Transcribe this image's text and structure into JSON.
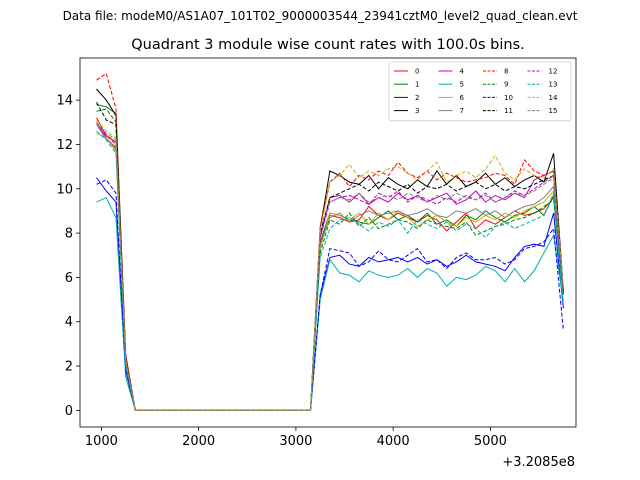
{
  "suptitle": "Data file: modeM0/AS1A07_101T02_9000003544_23941cztM0_level2_quad_clean.evt",
  "chart_data": {
    "type": "line",
    "title": "Quadrant 3 module wise count rates with 100.0s bins.",
    "xlabel": "",
    "ylabel": "",
    "x_offset_label": "+3.2085e8",
    "xlim": [
      780,
      5880
    ],
    "ylim": [
      -0.75,
      15.9
    ],
    "xticks": [
      1000,
      2000,
      3000,
      4000,
      5000
    ],
    "yticks": [
      0,
      2,
      4,
      6,
      8,
      10,
      12,
      14
    ],
    "grid": false,
    "legend_position": "top-right",
    "legend_columns": 4,
    "x": [
      950,
      1050,
      1150,
      1250,
      1350,
      1450,
      1550,
      1650,
      1750,
      1850,
      1950,
      2050,
      2150,
      2250,
      2350,
      2450,
      2550,
      2650,
      2750,
      2850,
      2950,
      3050,
      3150,
      3250,
      3350,
      3450,
      3550,
      3650,
      3750,
      3850,
      3950,
      4050,
      4150,
      4250,
      4350,
      4450,
      4550,
      4650,
      4750,
      4850,
      4950,
      5050,
      5150,
      5250,
      5350,
      5450,
      5550,
      5650,
      5750
    ],
    "series": [
      {
        "name": "0",
        "color": "#ff0000",
        "dash": "solid",
        "values": [
          13.2,
          12.4,
          12.1,
          2.3,
          0,
          0,
          0,
          0,
          0,
          0,
          0,
          0,
          0,
          0,
          0,
          0,
          0,
          0,
          0,
          0,
          0,
          0,
          0,
          7.5,
          8.8,
          8.7,
          8.5,
          8.6,
          9.2,
          8.8,
          8.6,
          8.9,
          8.7,
          8.5,
          8.8,
          8.6,
          8.1,
          8.5,
          8.9,
          8.2,
          8.6,
          8.4,
          8.7,
          9.0,
          8.8,
          8.9,
          9.1,
          9.6,
          5.5
        ]
      },
      {
        "name": "1",
        "color": "#008000",
        "dash": "solid",
        "values": [
          13.8,
          13.7,
          13.4,
          2.1,
          0,
          0,
          0,
          0,
          0,
          0,
          0,
          0,
          0,
          0,
          0,
          0,
          0,
          0,
          0,
          0,
          0,
          0,
          0,
          7.6,
          8.9,
          8.8,
          8.6,
          8.5,
          8.4,
          8.7,
          9.0,
          8.6,
          8.8,
          8.5,
          8.9,
          8.4,
          8.6,
          8.3,
          8.8,
          8.6,
          9.0,
          8.7,
          8.5,
          8.8,
          8.9,
          9.2,
          8.8,
          9.7,
          5.4
        ]
      },
      {
        "name": "2",
        "color": "#0000ff",
        "dash": "solid",
        "values": [
          10.5,
          9.9,
          9.4,
          1.8,
          0,
          0,
          0,
          0,
          0,
          0,
          0,
          0,
          0,
          0,
          0,
          0,
          0,
          0,
          0,
          0,
          0,
          0,
          0,
          5.2,
          6.9,
          7.0,
          6.6,
          6.5,
          6.9,
          6.7,
          6.8,
          6.9,
          6.7,
          6.9,
          6.6,
          6.8,
          6.5,
          6.7,
          7.0,
          6.7,
          6.6,
          6.5,
          6.3,
          6.9,
          7.4,
          7.5,
          7.4,
          8.9,
          4.6
        ]
      },
      {
        "name": "3",
        "color": "#000000",
        "dash": "solid",
        "values": [
          14.5,
          14.0,
          13.3,
          2.5,
          0,
          0,
          0,
          0,
          0,
          0,
          0,
          0,
          0,
          0,
          0,
          0,
          0,
          0,
          0,
          0,
          0,
          0,
          0,
          8.2,
          10.8,
          10.6,
          10.3,
          10.2,
          10.6,
          10.0,
          10.5,
          10.2,
          10.0,
          10.4,
          10.1,
          10.8,
          10.2,
          10.6,
          10.1,
          10.3,
          10.7,
          10.2,
          10.5,
          10.1,
          10.4,
          10.6,
          10.3,
          11.6,
          5.4
        ]
      },
      {
        "name": "4",
        "color": "#c000c0",
        "dash": "solid",
        "values": [
          13.0,
          12.3,
          11.8,
          2.1,
          0,
          0,
          0,
          0,
          0,
          0,
          0,
          0,
          0,
          0,
          0,
          0,
          0,
          0,
          0,
          0,
          0,
          0,
          0,
          7.8,
          9.6,
          9.7,
          9.4,
          9.8,
          9.3,
          9.6,
          9.4,
          9.8,
          9.5,
          9.7,
          9.4,
          9.6,
          9.8,
          9.3,
          9.5,
          9.9,
          9.4,
          9.7,
          9.5,
          9.8,
          9.6,
          10.4,
          10.6,
          10.8,
          5.2
        ]
      },
      {
        "name": "5",
        "color": "#00b0b0",
        "dash": "solid",
        "values": [
          9.4,
          9.6,
          8.7,
          1.5,
          0,
          0,
          0,
          0,
          0,
          0,
          0,
          0,
          0,
          0,
          0,
          0,
          0,
          0,
          0,
          0,
          0,
          0,
          0,
          5.0,
          6.8,
          6.2,
          6.1,
          5.8,
          6.3,
          6.1,
          6.0,
          6.1,
          6.4,
          6.0,
          6.4,
          6.2,
          5.6,
          6.0,
          5.9,
          6.1,
          6.5,
          6.3,
          5.8,
          6.4,
          5.8,
          6.3,
          7.1,
          7.9,
          4.9
        ]
      },
      {
        "name": "6",
        "color": "#c8b400",
        "dash": "solid",
        "values": [
          12.5,
          12.3,
          11.7,
          2.2,
          0,
          0,
          0,
          0,
          0,
          0,
          0,
          0,
          0,
          0,
          0,
          0,
          0,
          0,
          0,
          0,
          0,
          0,
          0,
          7.3,
          8.9,
          8.8,
          8.6,
          8.9,
          8.4,
          8.9,
          8.6,
          9.0,
          8.7,
          8.3,
          8.6,
          8.8,
          8.5,
          8.3,
          8.7,
          8.5,
          8.8,
          8.6,
          8.9,
          8.7,
          9.0,
          9.2,
          9.4,
          9.9,
          5.3
        ]
      },
      {
        "name": "7",
        "color": "#808080",
        "dash": "solid",
        "values": [
          12.9,
          12.2,
          11.9,
          2.2,
          0,
          0,
          0,
          0,
          0,
          0,
          0,
          0,
          0,
          0,
          0,
          0,
          0,
          0,
          0,
          0,
          0,
          0,
          0,
          7.5,
          8.7,
          8.9,
          8.5,
          8.8,
          9.0,
          8.8,
          8.9,
          9.0,
          8.8,
          8.9,
          9.1,
          8.8,
          8.7,
          9.0,
          8.9,
          9.1,
          8.8,
          9.0,
          8.7,
          9.0,
          9.2,
          9.3,
          9.6,
          10.1,
          5.3
        ]
      },
      {
        "name": "8",
        "color": "#ff0000",
        "dash": "dashed",
        "values": [
          14.9,
          15.2,
          13.6,
          2.5,
          0,
          0,
          0,
          0,
          0,
          0,
          0,
          0,
          0,
          0,
          0,
          0,
          0,
          0,
          0,
          0,
          0,
          0,
          0,
          8.3,
          10.3,
          10.7,
          10.1,
          10.6,
          10.4,
          10.8,
          10.6,
          11.2,
          10.7,
          10.5,
          10.8,
          10.4,
          10.7,
          10.5,
          10.3,
          10.4,
          10.5,
          10.7,
          10.6,
          10.2,
          11.3,
          10.8,
          10.6,
          10.8,
          5.3
        ]
      },
      {
        "name": "9",
        "color": "#008000",
        "dash": "dashed",
        "values": [
          13.5,
          13.6,
          13.0,
          2.2,
          0,
          0,
          0,
          0,
          0,
          0,
          0,
          0,
          0,
          0,
          0,
          0,
          0,
          0,
          0,
          0,
          0,
          0,
          0,
          7.1,
          8.6,
          8.4,
          8.9,
          8.3,
          8.7,
          8.2,
          8.4,
          8.6,
          8.5,
          8.2,
          8.6,
          8.4,
          8.3,
          8.2,
          8.5,
          7.9,
          8.1,
          8.3,
          8.4,
          8.6,
          8.7,
          8.9,
          9.2,
          9.5,
          5.2
        ]
      },
      {
        "name": "10",
        "color": "#0000ff",
        "dash": "dashed",
        "values": [
          10.2,
          10.4,
          9.8,
          1.8,
          0,
          0,
          0,
          0,
          0,
          0,
          0,
          0,
          0,
          0,
          0,
          0,
          0,
          0,
          0,
          0,
          0,
          0,
          0,
          5.2,
          7.3,
          7.2,
          7.1,
          6.5,
          6.7,
          7.2,
          6.8,
          6.7,
          7.0,
          7.3,
          6.7,
          6.8,
          6.4,
          6.9,
          7.1,
          6.8,
          6.8,
          6.9,
          6.6,
          6.8,
          7.3,
          7.4,
          7.6,
          8.2,
          3.6
        ]
      },
      {
        "name": "11",
        "color": "#000000",
        "dash": "dashed",
        "values": [
          13.9,
          13.1,
          12.9,
          2.3,
          0,
          0,
          0,
          0,
          0,
          0,
          0,
          0,
          0,
          0,
          0,
          0,
          0,
          0,
          0,
          0,
          0,
          0,
          0,
          8.0,
          9.6,
          9.8,
          10.0,
          10.2,
          9.9,
          10.3,
          10.1,
          9.9,
          10.2,
          9.8,
          10.1,
          10.0,
          10.2,
          9.9,
          10.1,
          10.3,
          10.0,
          10.2,
          9.9,
          10.1,
          10.0,
          10.2,
          10.4,
          10.6,
          5.4
        ]
      },
      {
        "name": "12",
        "color": "#c000c0",
        "dash": "dashed",
        "values": [
          13.0,
          12.4,
          12.0,
          2.2,
          0,
          0,
          0,
          0,
          0,
          0,
          0,
          0,
          0,
          0,
          0,
          0,
          0,
          0,
          0,
          0,
          0,
          0,
          0,
          7.8,
          9.4,
          9.6,
          9.7,
          9.5,
          9.3,
          9.8,
          9.6,
          9.9,
          9.4,
          9.7,
          9.5,
          9.3,
          9.6,
          9.4,
          9.7,
          9.5,
          9.8,
          9.4,
          9.6,
          9.9,
          9.7,
          10.0,
          10.3,
          10.6,
          5.3
        ]
      },
      {
        "name": "13",
        "color": "#00b0b0",
        "dash": "dashed",
        "values": [
          12.6,
          12.2,
          11.6,
          2.0,
          0,
          0,
          0,
          0,
          0,
          0,
          0,
          0,
          0,
          0,
          0,
          0,
          0,
          0,
          0,
          0,
          0,
          0,
          0,
          6.9,
          8.2,
          8.6,
          8.7,
          8.4,
          8.1,
          8.5,
          8.3,
          8.6,
          8.0,
          8.6,
          8.4,
          8.2,
          8.5,
          8.1,
          8.4,
          8.2,
          7.8,
          8.3,
          8.5,
          8.2,
          8.4,
          8.6,
          8.8,
          9.8,
          4.7
        ]
      },
      {
        "name": "14",
        "color": "#c8b400",
        "dash": "dashed",
        "values": [
          13.1,
          12.6,
          12.3,
          2.3,
          0,
          0,
          0,
          0,
          0,
          0,
          0,
          0,
          0,
          0,
          0,
          0,
          0,
          0,
          0,
          0,
          0,
          0,
          0,
          8.1,
          10.3,
          10.6,
          11.1,
          10.5,
          10.8,
          10.6,
          10.9,
          11.0,
          10.7,
          10.4,
          10.8,
          11.2,
          10.3,
          10.6,
          10.8,
          10.5,
          10.9,
          11.5,
          10.7,
          10.4,
          10.9,
          10.6,
          10.5,
          10.9,
          5.5
        ]
      },
      {
        "name": "15",
        "color": "#808080",
        "dash": "dashed",
        "values": [
          13.0,
          12.5,
          12.2,
          2.2,
          0,
          0,
          0,
          0,
          0,
          0,
          0,
          0,
          0,
          0,
          0,
          0,
          0,
          0,
          0,
          0,
          0,
          0,
          0,
          8.2,
          9.4,
          9.6,
          9.5,
          9.8,
          9.4,
          9.6,
          9.7,
          9.5,
          9.8,
          9.6,
          9.4,
          9.7,
          9.5,
          9.8,
          9.6,
          9.5,
          9.7,
          9.4,
          9.6,
          9.8,
          9.7,
          9.9,
          10.2,
          10.5,
          5.4
        ]
      }
    ]
  }
}
